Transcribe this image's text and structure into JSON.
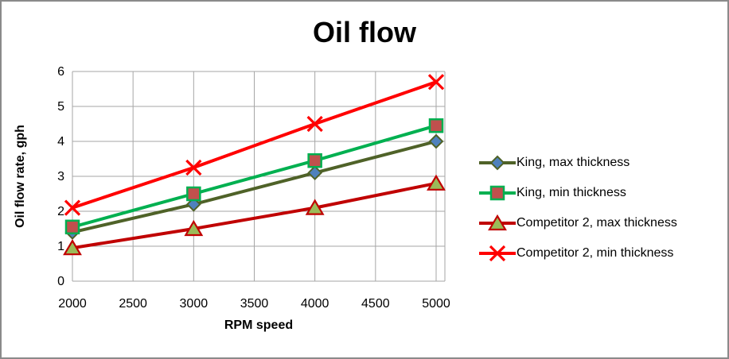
{
  "window": {
    "background": "#FFFFFF",
    "border_color": "#8A8A8A"
  },
  "chart_data": {
    "type": "line",
    "title": "Oil flow",
    "xlabel": "RPM speed",
    "ylabel": "Oil flow rate, gph",
    "x": [
      2000,
      3000,
      4000,
      5000
    ],
    "x_ticks": [
      2000,
      2500,
      3000,
      3500,
      4000,
      4500,
      5000
    ],
    "y_ticks": [
      0,
      1,
      2,
      3,
      4,
      5,
      6
    ],
    "xlim": [
      2000,
      5000
    ],
    "ylim": [
      0,
      6
    ],
    "grid": true,
    "gridline_color": "#A6A6A6",
    "legend_position": "right",
    "series": [
      {
        "name": "King, max thickness",
        "values": [
          1.4,
          2.2,
          3.1,
          4.0
        ],
        "line_color": "#4F6228",
        "marker": "diamond",
        "marker_fill": "#4F81BD",
        "marker_border": "#4F6228"
      },
      {
        "name": "King, min thickness",
        "values": [
          1.55,
          2.5,
          3.45,
          4.45
        ],
        "line_color": "#00B050",
        "marker": "square",
        "marker_fill": "#C0504D",
        "marker_border": "#00B050"
      },
      {
        "name": "Competitor 2, max thickness",
        "values": [
          0.95,
          1.5,
          2.1,
          2.8
        ],
        "line_color": "#C00000",
        "marker": "triangle",
        "marker_fill": "#9BBB59",
        "marker_border": "#C00000"
      },
      {
        "name": "Competitor 2, min thickness",
        "values": [
          2.1,
          3.25,
          4.5,
          5.7
        ],
        "line_color": "#FF0000",
        "marker": "x",
        "marker_fill": "#FF0000",
        "marker_border": "#FF0000"
      }
    ]
  }
}
